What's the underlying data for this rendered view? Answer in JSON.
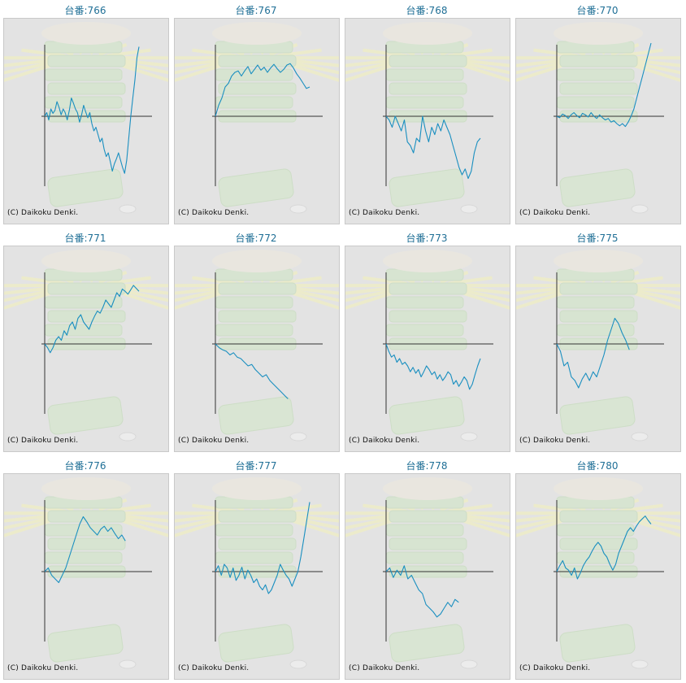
{
  "copyright": "(C) Daikoku Denki.",
  "colors": {
    "line": "#1a8fc0",
    "axis": "#333333",
    "title": "#1f6f96",
    "panel_bg": "#e3e3e3"
  },
  "chart_data": [
    {
      "type": "line",
      "title": "台番:766",
      "y": [
        0,
        0.05,
        -0.05,
        0.1,
        0.04,
        0.08,
        0.2,
        0.12,
        0.02,
        0.1,
        0.05,
        -0.05,
        0.08,
        0.25,
        0.18,
        0.1,
        0.05,
        -0.08,
        0.02,
        0.15,
        0.06,
        -0.02,
        0.05,
        -0.1,
        -0.2,
        -0.15,
        -0.25,
        -0.35,
        -0.3,
        -0.45,
        -0.55,
        -0.5,
        -0.62,
        -0.75,
        -0.65,
        -0.58,
        -0.5,
        -0.6,
        -0.7,
        -0.78,
        -0.6,
        -0.3,
        0,
        0.25,
        0.5,
        0.8,
        0.95
      ]
    },
    {
      "type": "line",
      "title": "台番:767",
      "y": [
        0,
        0.15,
        0.25,
        0.4,
        0.45,
        0.55,
        0.6,
        0.62,
        0.55,
        0.62,
        0.68,
        0.58,
        0.64,
        0.7,
        0.63,
        0.67,
        0.6,
        0.66,
        0.71,
        0.65,
        0.6,
        0.64,
        0.7,
        0.72,
        0.66,
        0.58,
        0.52,
        0.45,
        0.38,
        0.4
      ]
    },
    {
      "type": "line",
      "title": "台番:768",
      "y": [
        0,
        -0.05,
        -0.15,
        0,
        -0.1,
        -0.2,
        -0.05,
        -0.35,
        -0.4,
        -0.5,
        -0.3,
        -0.35,
        0,
        -0.2,
        -0.35,
        -0.15,
        -0.25,
        -0.1,
        -0.2,
        -0.05,
        -0.15,
        -0.25,
        -0.4,
        -0.55,
        -0.7,
        -0.8,
        -0.72,
        -0.85,
        -0.75,
        -0.5,
        -0.35,
        -0.3
      ]
    },
    {
      "type": "line",
      "title": "台番:770",
      "y": [
        0,
        -0.02,
        0.03,
        0.01,
        -0.03,
        0.02,
        0.05,
        0.01,
        -0.02,
        0.04,
        0.02,
        -0.01,
        0.05,
        0,
        -0.03,
        0.02,
        -0.02,
        -0.05,
        -0.03,
        -0.08,
        -0.06,
        -0.1,
        -0.13,
        -0.1,
        -0.14,
        -0.08,
        0,
        0.1,
        0.25,
        0.4,
        0.55,
        0.7,
        0.85,
        1.0
      ]
    },
    {
      "type": "line",
      "title": "台番:771",
      "y": [
        0,
        -0.05,
        -0.12,
        -0.05,
        0.05,
        0.1,
        0.05,
        0.18,
        0.12,
        0.25,
        0.3,
        0.2,
        0.35,
        0.4,
        0.3,
        0.25,
        0.2,
        0.3,
        0.38,
        0.45,
        0.42,
        0.5,
        0.6,
        0.55,
        0.5,
        0.6,
        0.7,
        0.65,
        0.75,
        0.72,
        0.68,
        0.74,
        0.8,
        0.76,
        0.72
      ]
    },
    {
      "type": "line",
      "title": "台番:772",
      "y": [
        0,
        -0.05,
        -0.08,
        -0.1,
        -0.15,
        -0.12,
        -0.18,
        -0.2,
        -0.25,
        -0.3,
        -0.28,
        -0.35,
        -0.4,
        -0.45,
        -0.42,
        -0.5,
        -0.55,
        -0.6,
        -0.65,
        -0.7,
        -0.75
      ]
    },
    {
      "type": "line",
      "title": "台番:773",
      "y": [
        0,
        -0.1,
        -0.18,
        -0.15,
        -0.25,
        -0.2,
        -0.28,
        -0.25,
        -0.3,
        -0.38,
        -0.32,
        -0.4,
        -0.35,
        -0.45,
        -0.38,
        -0.3,
        -0.35,
        -0.42,
        -0.38,
        -0.48,
        -0.42,
        -0.5,
        -0.45,
        -0.38,
        -0.42,
        -0.55,
        -0.5,
        -0.58,
        -0.52,
        -0.45,
        -0.5,
        -0.62,
        -0.55,
        -0.42,
        -0.3,
        -0.2
      ]
    },
    {
      "type": "line",
      "title": "台番:775",
      "y": [
        0,
        -0.1,
        -0.3,
        -0.25,
        -0.45,
        -0.5,
        -0.6,
        -0.48,
        -0.4,
        -0.5,
        -0.38,
        -0.45,
        -0.3,
        -0.15,
        0.05,
        0.2,
        0.35,
        0.28,
        0.15,
        0.05,
        -0.08
      ]
    },
    {
      "type": "line",
      "title": "台番:776",
      "y": [
        0,
        0.05,
        -0.05,
        -0.1,
        -0.15,
        -0.05,
        0.05,
        0.2,
        0.35,
        0.5,
        0.65,
        0.75,
        0.68,
        0.6,
        0.55,
        0.5,
        0.58,
        0.62,
        0.55,
        0.6,
        0.52,
        0.45,
        0.5,
        0.42
      ]
    },
    {
      "type": "line",
      "title": "台番:777",
      "y": [
        0,
        0.08,
        -0.05,
        0.1,
        0.05,
        -0.08,
        0.05,
        -0.12,
        -0.05,
        0.06,
        -0.1,
        0.02,
        -0.05,
        -0.15,
        -0.1,
        -0.2,
        -0.25,
        -0.18,
        -0.3,
        -0.25,
        -0.15,
        -0.05,
        0.1,
        0.02,
        -0.05,
        -0.1,
        -0.2,
        -0.1,
        0,
        0.2,
        0.45,
        0.7,
        0.95
      ]
    },
    {
      "type": "line",
      "title": "台番:778",
      "y": [
        0,
        0.05,
        -0.08,
        0.02,
        -0.05,
        0.08,
        -0.1,
        -0.05,
        -0.15,
        -0.25,
        -0.3,
        -0.45,
        -0.5,
        -0.55,
        -0.62,
        -0.58,
        -0.5,
        -0.42,
        -0.48,
        -0.38,
        -0.42
      ]
    },
    {
      "type": "line",
      "title": "台番:780",
      "y": [
        0,
        0.08,
        0.15,
        0.05,
        0.02,
        -0.05,
        0.05,
        -0.1,
        -0.02,
        0.08,
        0.15,
        0.2,
        0.28,
        0.35,
        0.4,
        0.35,
        0.25,
        0.2,
        0.1,
        0.02,
        0.1,
        0.25,
        0.35,
        0.45,
        0.55,
        0.6,
        0.55,
        0.62,
        0.68,
        0.72,
        0.76,
        0.7,
        0.65
      ]
    }
  ]
}
